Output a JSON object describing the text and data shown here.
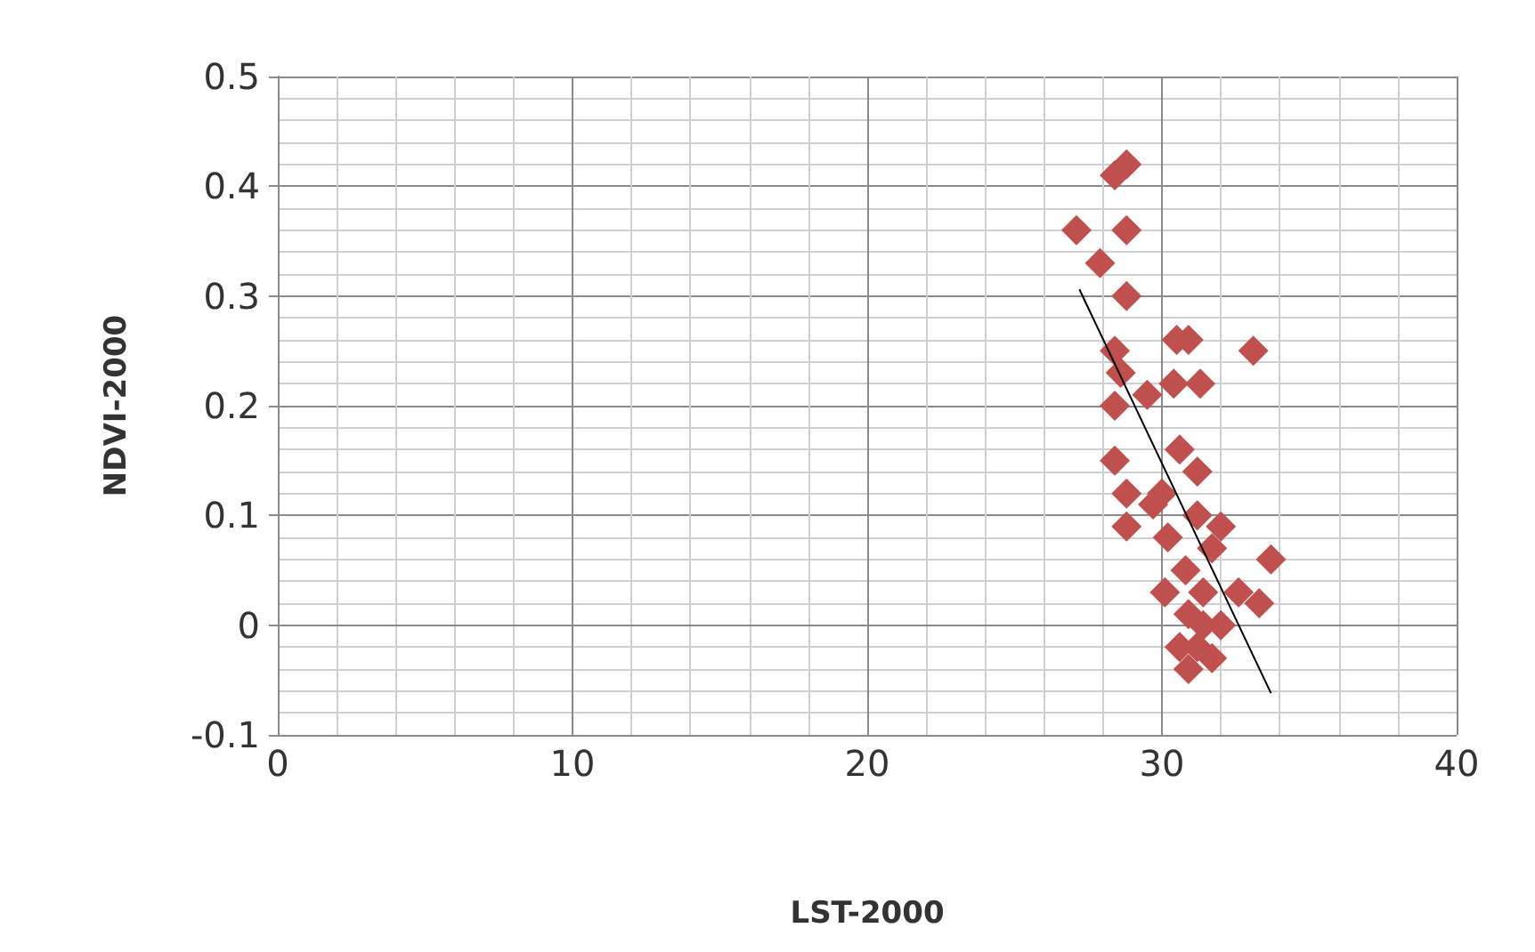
{
  "chart_data": {
    "type": "scatter",
    "xlabel": "LST-2000",
    "ylabel": "NDVI-2000",
    "xlim": [
      0,
      40
    ],
    "xticks": [
      0,
      10,
      20,
      30,
      40
    ],
    "ylim": [
      -0.1,
      0.5
    ],
    "yticks": [
      -0.1,
      0,
      0.1,
      0.2,
      0.3,
      0.4,
      0.5
    ],
    "grid": true,
    "series": [
      {
        "marker": "diamond",
        "color": "#c0504d",
        "x": [
          27.1,
          27.9,
          28.4,
          28.8,
          28.8,
          28.8,
          28.4,
          28.6,
          28.4,
          29.5,
          30.4,
          30.5,
          30.9,
          31.3,
          33.1,
          28.4,
          30.6,
          31.2,
          28.8,
          30,
          29.7,
          28.8,
          30.2,
          31.2,
          32,
          31.7,
          33.7,
          30.1,
          30.8,
          31.4,
          32.6,
          33.3,
          30.6,
          31.2,
          31.7,
          31.4,
          30.9,
          30.9,
          32
        ],
        "values": [
          0.36,
          0.33,
          0.41,
          0.42,
          0.36,
          0.3,
          0.25,
          0.23,
          0.2,
          0.21,
          0.22,
          0.26,
          0.26,
          0.22,
          0.25,
          0.15,
          0.16,
          0.14,
          0.12,
          0.12,
          0.11,
          0.09,
          0.08,
          0.1,
          0.09,
          0.07,
          0.06,
          0.03,
          0.05,
          0.03,
          0.03,
          0.02,
          -0.02,
          -0.02,
          -0.03,
          0,
          -0.04,
          0.01,
          0
        ]
      },
      {
        "type": "line",
        "marker": "none",
        "color": "#000000",
        "x": [
          27.2,
          33.7
        ],
        "values": [
          0.306,
          -0.062
        ]
      }
    ]
  }
}
